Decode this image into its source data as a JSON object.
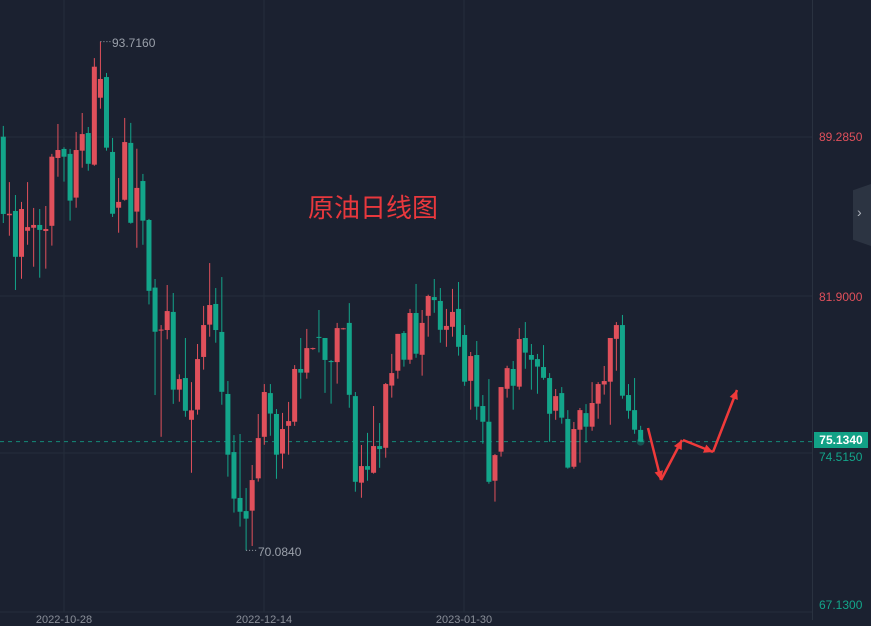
{
  "chart_data": {
    "type": "candlestick",
    "title": "原油日线图",
    "colors": {
      "up": "#e0505b",
      "down": "#13a58a",
      "background": "#1b2130",
      "grid": "#252d3b",
      "annotation": "#f03a3a"
    },
    "y_axis": {
      "ticks": [
        "89.2850",
        "81.9000",
        "74.5150",
        "67.1300"
      ],
      "range": [
        67.13,
        93.716
      ]
    },
    "x_axis": {
      "tick_labels": [
        "2022-10-28",
        "2022-12-14",
        "2023-01-30"
      ]
    },
    "grid": true,
    "current_price": "75.1340",
    "high_label": "93.7160",
    "low_label": "70.0840",
    "candles_ohlc": [
      [
        89.3,
        89.8,
        85.29,
        85.71
      ],
      [
        85.65,
        87.19,
        84.7,
        85.72
      ],
      [
        85.85,
        86.59,
        82.18,
        83.72
      ],
      [
        83.72,
        86.27,
        82.7,
        85.94
      ],
      [
        84.93,
        87.19,
        84.28,
        85.1
      ],
      [
        85.07,
        85.99,
        83.26,
        85.2
      ],
      [
        85.2,
        85.94,
        82.75,
        84.97
      ],
      [
        84.92,
        86.08,
        83.17,
        85.01
      ],
      [
        85.16,
        88.5,
        84.24,
        88.37
      ],
      [
        88.31,
        89.89,
        87.44,
        88.68
      ],
      [
        88.73,
        88.81,
        87.21,
        88.37
      ],
      [
        88.5,
        88.73,
        85.4,
        86.33
      ],
      [
        86.47,
        89.52,
        86.0,
        88.68
      ],
      [
        88.65,
        90.4,
        87.86,
        89.42
      ],
      [
        89.47,
        89.75,
        87.72,
        88.04
      ],
      [
        88.0,
        92.95,
        87.95,
        92.55
      ],
      [
        91.11,
        93.716,
        90.6,
        91.98
      ],
      [
        92.07,
        92.26,
        88.65,
        88.79
      ],
      [
        88.59,
        89.24,
        85.57,
        85.72
      ],
      [
        86.0,
        87.38,
        84.84,
        86.27
      ],
      [
        86.37,
        90.17,
        86.33,
        89.05
      ],
      [
        89.01,
        89.94,
        85.26,
        85.3
      ],
      [
        85.82,
        88.74,
        84.14,
        86.92
      ],
      [
        87.24,
        87.57,
        84.28,
        85.4
      ],
      [
        85.43,
        85.48,
        81.51,
        82.14
      ],
      [
        82.29,
        82.69,
        77.3,
        80.24
      ],
      [
        80.3,
        80.55,
        75.36,
        80.34
      ],
      [
        80.32,
        82.41,
        79.89,
        81.2
      ],
      [
        81.16,
        82.04,
        76.89,
        77.55
      ],
      [
        77.55,
        78.26,
        76.99,
        78.04
      ],
      [
        78.09,
        79.95,
        76.29,
        76.57
      ],
      [
        76.15,
        77.9,
        73.69,
        76.59
      ],
      [
        76.62,
        79.67,
        76.39,
        78.97
      ],
      [
        79.07,
        81.44,
        78.48,
        80.55
      ],
      [
        80.57,
        83.43,
        80.01,
        81.48
      ],
      [
        81.53,
        82.27,
        79.73,
        80.32
      ],
      [
        80.23,
        82.78,
        76.85,
        77.45
      ],
      [
        77.35,
        77.95,
        73.51,
        74.53
      ],
      [
        74.65,
        75.44,
        71.84,
        72.49
      ],
      [
        72.52,
        75.49,
        71.19,
        71.88
      ],
      [
        71.91,
        72.98,
        70.084,
        71.56
      ],
      [
        71.93,
        74.05,
        70.29,
        73.35
      ],
      [
        73.43,
        76.42,
        73.28,
        75.3
      ],
      [
        75.36,
        77.81,
        74.99,
        77.44
      ],
      [
        77.39,
        77.81,
        75.41,
        76.44
      ],
      [
        76.42,
        76.65,
        73.41,
        74.53
      ],
      [
        74.58,
        76.47,
        73.88,
        75.72
      ],
      [
        75.87,
        76.98,
        74.53,
        76.09
      ],
      [
        76.06,
        78.69,
        75.87,
        78.51
      ],
      [
        78.51,
        79.95,
        77.13,
        78.34
      ],
      [
        78.34,
        80.37,
        78.06,
        79.48
      ],
      [
        79.44,
        79.5,
        79.4,
        79.48
      ],
      [
        80.0,
        81.25,
        79.28,
        79.96
      ],
      [
        79.95,
        79.95,
        77.4,
        78.93
      ],
      [
        78.88,
        78.93,
        76.9,
        78.83
      ],
      [
        78.83,
        80.65,
        77.83,
        80.41
      ],
      [
        80.36,
        80.42,
        80.34,
        80.4
      ],
      [
        80.65,
        81.57,
        76.71,
        77.31
      ],
      [
        77.25,
        77.44,
        72.81,
        73.27
      ],
      [
        73.23,
        74.98,
        72.53,
        74.0
      ],
      [
        74.0,
        75.54,
        73.32,
        73.83
      ],
      [
        73.69,
        76.79,
        73.65,
        74.93
      ],
      [
        74.93,
        76.0,
        73.92,
        74.79
      ],
      [
        74.85,
        77.86,
        74.39,
        77.81
      ],
      [
        77.74,
        79.21,
        77.18,
        78.32
      ],
      [
        78.43,
        80.14,
        78.06,
        80.14
      ],
      [
        80.18,
        80.27,
        78.62,
        78.94
      ],
      [
        78.94,
        81.3,
        78.75,
        81.11
      ],
      [
        81.11,
        82.46,
        79.03,
        79.22
      ],
      [
        79.17,
        81.25,
        78.2,
        80.65
      ],
      [
        80.98,
        81.96,
        80.01,
        81.9
      ],
      [
        81.85,
        82.69,
        81.12,
        81.71
      ],
      [
        81.67,
        82.27,
        79.73,
        80.33
      ],
      [
        80.33,
        81.3,
        79.54,
        80.51
      ],
      [
        80.47,
        82.23,
        80.01,
        81.16
      ],
      [
        81.3,
        82.55,
        79.13,
        79.54
      ],
      [
        80.09,
        80.55,
        77.73,
        77.92
      ],
      [
        77.96,
        79.3,
        76.62,
        79.11
      ],
      [
        79.16,
        79.81,
        76.15,
        76.76
      ],
      [
        76.79,
        77.3,
        75.04,
        76.06
      ],
      [
        76.06,
        78.04,
        73.18,
        73.27
      ],
      [
        73.32,
        74.56,
        72.35,
        74.51
      ],
      [
        74.67,
        77.67,
        74.44,
        77.67
      ],
      [
        77.59,
        78.66,
        77.18,
        78.55
      ],
      [
        78.51,
        78.88,
        76.62,
        77.73
      ],
      [
        77.69,
        80.41,
        77.55,
        79.9
      ],
      [
        79.95,
        80.69,
        78.52,
        79.27
      ],
      [
        79.16,
        79.67,
        77.55,
        78.94
      ],
      [
        78.97,
        79.21,
        77.36,
        78.62
      ],
      [
        78.6,
        79.62,
        78.01,
        78.1
      ],
      [
        78.09,
        78.32,
        75.13,
        76.43
      ],
      [
        76.57,
        77.58,
        76.15,
        77.25
      ],
      [
        77.39,
        77.67,
        75.97,
        76.25
      ],
      [
        76.19,
        76.6,
        73.88,
        73.93
      ],
      [
        73.97,
        76.05,
        73.88,
        75.72
      ],
      [
        75.69,
        76.7,
        74.16,
        76.6
      ],
      [
        76.46,
        76.88,
        75.09,
        75.83
      ],
      [
        75.83,
        77.9,
        75.64,
        76.93
      ],
      [
        76.9,
        77.9,
        76.2,
        77.81
      ],
      [
        77.79,
        78.65,
        77.32,
        77.95
      ],
      [
        77.92,
        79.95,
        75.92,
        79.95
      ],
      [
        79.91,
        80.69,
        78.43,
        80.55
      ],
      [
        80.55,
        81.02,
        77.13,
        77.27
      ],
      [
        77.3,
        77.81,
        76.2,
        76.57
      ],
      [
        76.6,
        78.09,
        75.5,
        75.69
      ],
      [
        75.68,
        75.87,
        75.13,
        75.134
      ]
    ]
  },
  "ui": {
    "collapse_icon": "chevron-right-icon"
  }
}
